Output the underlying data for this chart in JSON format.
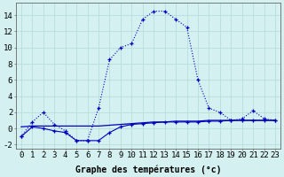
{
  "title": "",
  "xlabel": "Graphe des températures (°c)",
  "ylabel": "",
  "background_color": "#d4f0f0",
  "grid_color": "#b8dede",
  "line_color": "#0000bb",
  "hours": [
    0,
    1,
    2,
    3,
    4,
    5,
    6,
    7,
    8,
    9,
    10,
    11,
    12,
    13,
    14,
    15,
    16,
    17,
    18,
    19,
    20,
    21,
    22,
    23
  ],
  "temp_main": [
    -1.0,
    0.8,
    2.0,
    0.5,
    -0.3,
    -1.5,
    -1.5,
    2.5,
    8.5,
    10.0,
    10.5,
    13.5,
    14.5,
    14.5,
    13.5,
    12.5,
    6.0,
    2.5,
    2.0,
    1.0,
    1.2,
    2.2,
    1.2,
    1.0
  ],
  "temp_dew": [
    -1.0,
    0.2,
    0.0,
    -0.3,
    -0.5,
    -1.5,
    -1.5,
    -1.5,
    -0.5,
    0.2,
    0.5,
    0.6,
    0.7,
    0.8,
    0.8,
    0.8,
    0.8,
    0.9,
    0.9,
    1.0,
    1.0,
    1.0,
    1.0,
    1.0
  ],
  "temp_flat": [
    0.2,
    0.3,
    0.3,
    0.3,
    0.3,
    0.3,
    0.3,
    0.3,
    0.4,
    0.5,
    0.6,
    0.7,
    0.8,
    0.8,
    0.9,
    0.9,
    0.9,
    1.0,
    1.0,
    1.0,
    1.0,
    1.0,
    1.0,
    1.0
  ],
  "ylim": [
    -2.5,
    15.5
  ],
  "yticks": [
    -2,
    0,
    2,
    4,
    6,
    8,
    10,
    12,
    14
  ],
  "xticks": [
    0,
    1,
    2,
    3,
    4,
    5,
    6,
    7,
    8,
    9,
    10,
    11,
    12,
    13,
    14,
    15,
    16,
    17,
    18,
    19,
    20,
    21,
    22,
    23
  ],
  "xlabel_fontsize": 7.0,
  "tick_fontsize": 6.5,
  "figsize": [
    3.2,
    2.0
  ],
  "dpi": 100
}
